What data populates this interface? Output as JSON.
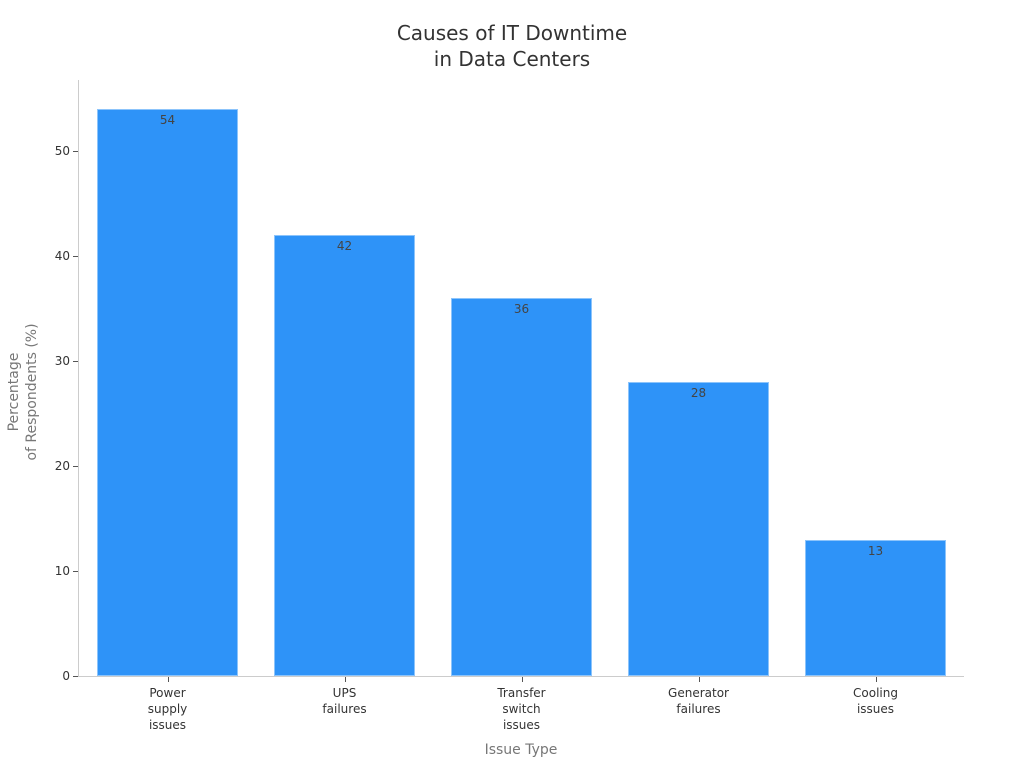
{
  "chart_data": {
    "type": "bar",
    "title": "Causes of IT Downtime in Data Centers",
    "title_lines": [
      "Causes of IT Downtime",
      "in Data Centers"
    ],
    "xlabel": "Issue Type",
    "ylabel": "Percentage of Respondents (%)",
    "ylabel_lines": [
      "Percentage",
      "of Respondents (%)"
    ],
    "categories": [
      "Power supply issues",
      "UPS failures",
      "Transfer switch issues",
      "Generator failures",
      "Cooling issues"
    ],
    "category_lines": [
      [
        "Power",
        "supply",
        "issues"
      ],
      [
        "UPS",
        "failures"
      ],
      [
        "Transfer",
        "switch",
        "issues"
      ],
      [
        "Generator",
        "failures"
      ],
      [
        "Cooling",
        "issues"
      ]
    ],
    "values": [
      54,
      42,
      36,
      28,
      13
    ],
    "value_labels": [
      "54",
      "42",
      "36",
      "28",
      "13"
    ],
    "ylim": [
      0,
      57
    ],
    "yticks": [
      0,
      10,
      20,
      30,
      40,
      50
    ],
    "ytick_labels": [
      "0",
      "10",
      "20",
      "30",
      "40",
      "50"
    ],
    "grid": false,
    "legend": null,
    "bar_color": "#2e93f8"
  }
}
